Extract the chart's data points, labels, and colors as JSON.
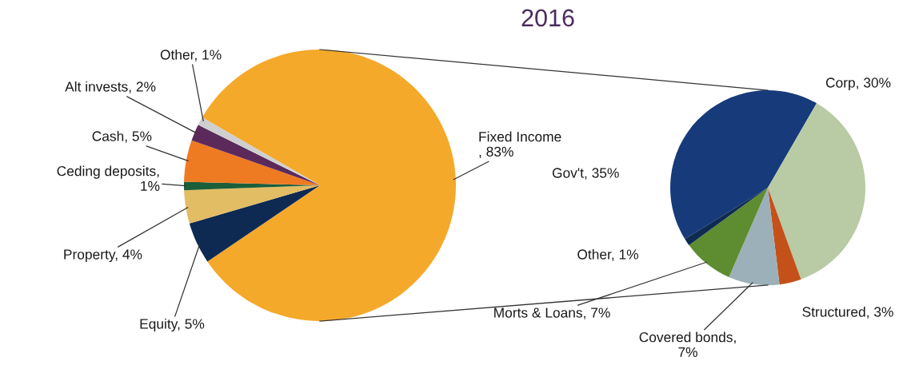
{
  "chart_data": [
    {
      "type": "pie",
      "title": "2016",
      "categories": [
        "Fixed Income\n, 83%",
        "Equity, 5%",
        "Property, 4%",
        "Ceding deposits,\n1%",
        "Cash, 5%",
        "Alt invests, 2%",
        "Other, 1%"
      ],
      "values": [
        83,
        5,
        4,
        1,
        5,
        2,
        1
      ],
      "colors": [
        "#f4a92b",
        "#0e2a52",
        "#e3bd63",
        "#1b5e3a",
        "#ee7a22",
        "#5b2a5a",
        "#d0cfcf"
      ]
    },
    {
      "type": "pie",
      "categories": [
        "Gov't, 35%",
        "Corp, 30%",
        "Structured, 3%",
        "Covered bonds,\n7%",
        "Morts & Loans, 7%",
        "Other, 1%"
      ],
      "values": [
        35,
        30,
        3,
        7,
        7,
        1
      ],
      "colors": [
        "#173a7a",
        "#b8cba5",
        "#c4511a",
        "#9bb0b8",
        "#5e8c31",
        "#0e2a52"
      ]
    }
  ]
}
